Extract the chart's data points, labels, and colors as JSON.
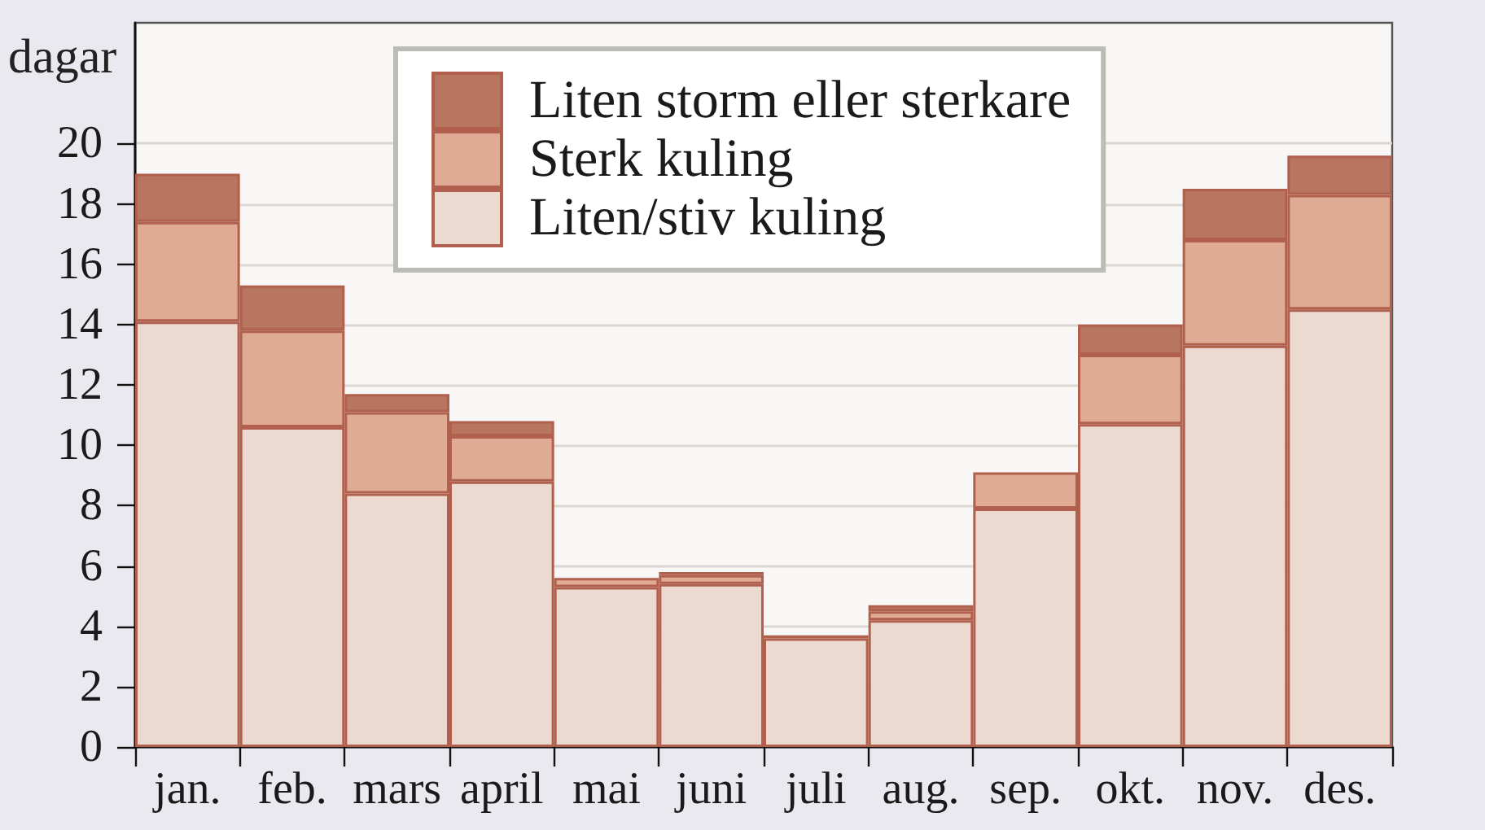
{
  "chart_data": {
    "type": "bar",
    "stacked": true,
    "ylabel": "dagar",
    "categories": [
      "jan.",
      "feb.",
      "mars",
      "april",
      "mai",
      "juni",
      "juli",
      "aug.",
      "sep.",
      "okt.",
      "nov.",
      "des."
    ],
    "series": [
      {
        "name": "Liten/stiv kuling",
        "color": "#ecd9d0",
        "values": [
          14.1,
          10.6,
          8.4,
          8.8,
          5.3,
          5.4,
          3.6,
          4.2,
          7.9,
          10.7,
          13.3,
          14.5
        ]
      },
      {
        "name": "Sterk kuling",
        "color": "#e0ab95",
        "values": [
          3.3,
          3.2,
          2.7,
          1.5,
          0.3,
          0.3,
          0.1,
          0.3,
          1.2,
          2.3,
          3.5,
          3.8
        ]
      },
      {
        "name": "Liten storm eller sterkare",
        "color": "#b87560",
        "values": [
          1.6,
          1.5,
          0.6,
          0.5,
          0,
          0.1,
          0,
          0.2,
          0,
          1.0,
          1.7,
          1.3
        ]
      }
    ],
    "ylim": [
      0,
      24
    ],
    "yticks": [
      0,
      2,
      4,
      6,
      8,
      10,
      12,
      14,
      16,
      18,
      20
    ],
    "grid": "y",
    "legend": "top"
  }
}
